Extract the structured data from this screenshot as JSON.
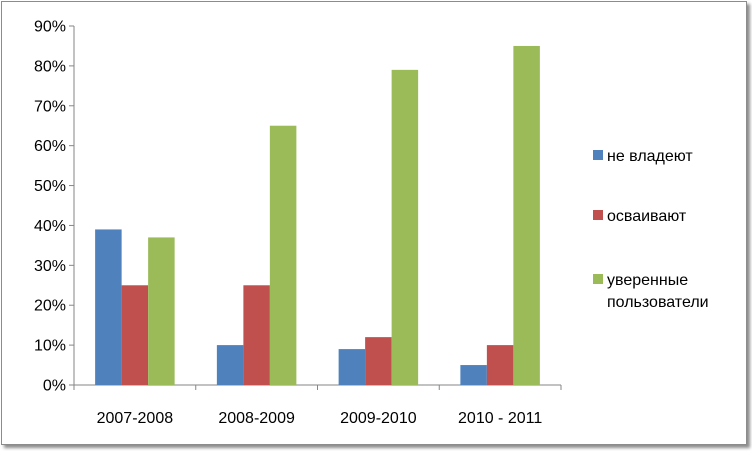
{
  "chart_data": {
    "type": "bar",
    "categories": [
      "2007-2008",
      "2008-2009",
      "2009-2010",
      "2010 - 2011"
    ],
    "series": [
      {
        "name": "не владеют",
        "values": [
          39,
          10,
          9,
          5
        ],
        "color": "#4f81bd"
      },
      {
        "name": "осваивают",
        "values": [
          25,
          25,
          12,
          10
        ],
        "color": "#c0504d"
      },
      {
        "name": "уверенные пользователи",
        "legend_lines": [
          "уверенные",
          "пользователи"
        ],
        "values": [
          37,
          65,
          79,
          85
        ],
        "color": "#9bbb59"
      }
    ],
    "ylim": [
      0,
      90
    ],
    "yticks": [
      0,
      10,
      20,
      30,
      40,
      50,
      60,
      70,
      80,
      90
    ],
    "ytick_suffix": "%",
    "grid": false,
    "legend": "right",
    "axis_color": "#868686"
  }
}
